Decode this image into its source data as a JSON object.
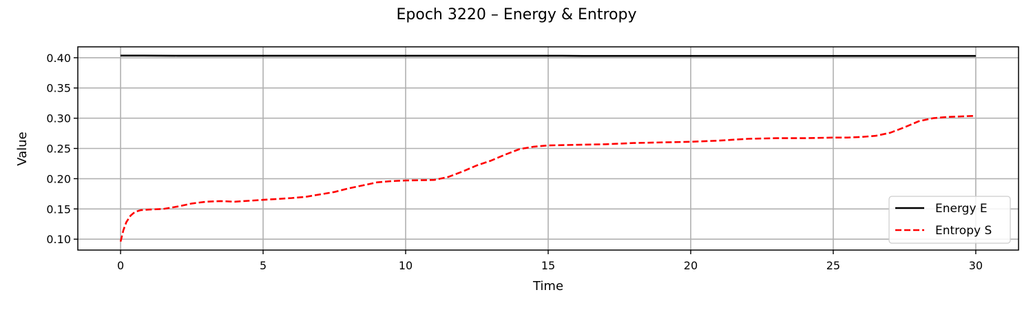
{
  "chart_data": {
    "type": "line",
    "title": "Epoch 3220 – Energy & Entropy",
    "xlabel": "Time",
    "ylabel": "Value",
    "xlim": [
      -1.5,
      31.5
    ],
    "ylim": [
      0.082,
      0.418
    ],
    "xticks": [
      0,
      5,
      10,
      15,
      20,
      25,
      30
    ],
    "xtick_labels": [
      "0",
      "5",
      "10",
      "15",
      "20",
      "25",
      "30"
    ],
    "yticks": [
      0.1,
      0.15,
      0.2,
      0.25,
      0.3,
      0.35,
      0.4
    ],
    "ytick_labels": [
      "0.10",
      "0.15",
      "0.20",
      "0.25",
      "0.30",
      "0.35",
      "0.40"
    ],
    "grid": true,
    "legend_position": "lower-right",
    "series": [
      {
        "name": "Energy E",
        "color": "#000000",
        "style": "solid",
        "x": [
          0,
          0.8,
          2,
          4,
          6,
          8,
          10,
          12,
          14,
          15.5,
          16.2,
          18,
          20,
          22,
          24,
          26,
          28,
          30
        ],
        "y": [
          0.4035,
          0.4035,
          0.4033,
          0.4033,
          0.4033,
          0.4033,
          0.4033,
          0.4033,
          0.4033,
          0.4033,
          0.403,
          0.403,
          0.403,
          0.403,
          0.403,
          0.403,
          0.403,
          0.403
        ]
      },
      {
        "name": "Entropy S",
        "color": "#ff0000",
        "style": "dashed",
        "x": [
          0,
          0.1,
          0.2,
          0.35,
          0.5,
          0.7,
          1,
          1.5,
          2,
          2.5,
          3,
          3.5,
          4,
          5,
          6,
          6.5,
          7,
          7.5,
          8,
          8.5,
          9,
          9.5,
          10,
          11,
          11.5,
          12,
          12.5,
          13,
          13.5,
          14,
          14.5,
          15,
          16,
          17,
          18,
          19,
          20,
          21,
          22,
          23,
          24,
          25,
          25.5,
          26,
          26.5,
          27,
          27.5,
          28,
          28.5,
          29,
          30
        ],
        "y": [
          0.096,
          0.115,
          0.128,
          0.139,
          0.145,
          0.148,
          0.149,
          0.15,
          0.154,
          0.159,
          0.162,
          0.163,
          0.162,
          0.165,
          0.168,
          0.17,
          0.174,
          0.178,
          0.184,
          0.189,
          0.194,
          0.196,
          0.197,
          0.198,
          0.203,
          0.212,
          0.222,
          0.23,
          0.24,
          0.249,
          0.253,
          0.255,
          0.256,
          0.257,
          0.259,
          0.26,
          0.261,
          0.263,
          0.266,
          0.267,
          0.267,
          0.268,
          0.268,
          0.269,
          0.271,
          0.276,
          0.285,
          0.295,
          0.3,
          0.302,
          0.304
        ]
      }
    ]
  }
}
